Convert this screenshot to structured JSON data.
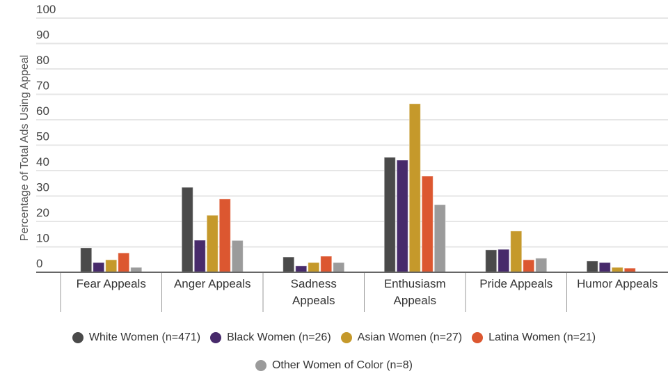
{
  "chart_data": {
    "type": "bar",
    "title": "",
    "xlabel": "",
    "ylabel": "Percentage of Total Ads Using Appeal",
    "ylim": [
      0,
      100
    ],
    "yticks": [
      0,
      10,
      20,
      30,
      40,
      50,
      60,
      70,
      80,
      90,
      100
    ],
    "grid": true,
    "legend_position": "bottom",
    "categories": [
      [
        "Fear Appeals"
      ],
      [
        "Anger Appeals"
      ],
      [
        "Sadness",
        "Appeals"
      ],
      [
        "Enthusiasm",
        "Appeals"
      ],
      [
        "Pride Appeals"
      ],
      [
        "Humor Appeals"
      ]
    ],
    "series": [
      {
        "name": "White Women (n=471)",
        "color": "#4a4a4a",
        "values": [
          9.6,
          33.4,
          6.0,
          45.2,
          8.8,
          4.4
        ]
      },
      {
        "name": "Black Women (n=26)",
        "color": "#472a6b",
        "values": [
          3.8,
          12.6,
          2.5,
          44.1,
          9.0,
          3.8
        ]
      },
      {
        "name": "Asian Women (n=27)",
        "color": "#c5992b",
        "values": [
          4.9,
          22.4,
          3.8,
          66.3,
          16.2,
          1.9
        ]
      },
      {
        "name": "Latina Women (n=21)",
        "color": "#dc5730",
        "values": [
          7.6,
          28.8,
          6.3,
          37.8,
          4.9,
          1.6
        ]
      },
      {
        "name": "Other Women of Color (n=8)",
        "color": "#9b9b9b",
        "values": [
          1.9,
          12.5,
          3.8,
          26.6,
          5.5,
          0
        ]
      }
    ]
  }
}
